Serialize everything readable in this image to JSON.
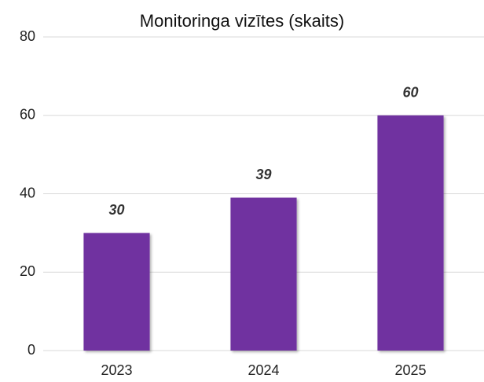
{
  "chart_data": {
    "type": "bar",
    "title": "Monitoringa vizītes (skaits)",
    "categories": [
      "2023",
      "2024",
      "2025"
    ],
    "values": [
      30,
      39,
      60
    ],
    "color": "#7030a0",
    "ylim": [
      0,
      80
    ],
    "yticks": [
      0,
      20,
      40,
      60,
      80
    ],
    "grid": true
  }
}
